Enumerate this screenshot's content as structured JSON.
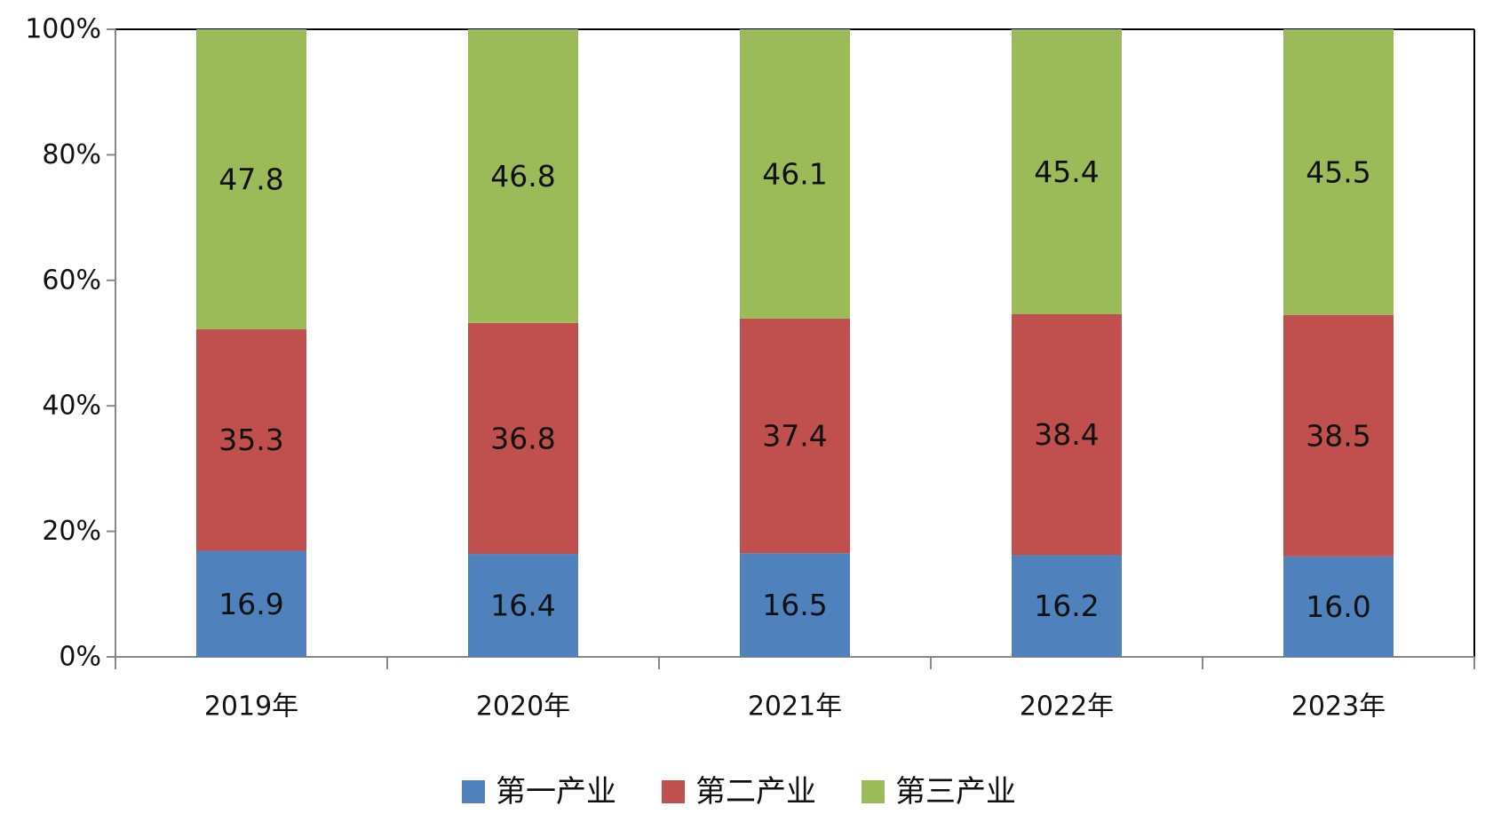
{
  "chart_data": {
    "type": "bar",
    "stacked": true,
    "percent_stacked": true,
    "categories": [
      "2019年",
      "2020年",
      "2021年",
      "2022年",
      "2023年"
    ],
    "series": [
      {
        "name": "第一产业",
        "values": [
          16.9,
          16.4,
          16.5,
          16.2,
          16.0
        ],
        "color": "#4f81bd"
      },
      {
        "name": "第二产业",
        "values": [
          35.3,
          36.8,
          37.4,
          38.4,
          38.5
        ],
        "color": "#c0504d"
      },
      {
        "name": "第三产业",
        "values": [
          47.8,
          46.8,
          46.1,
          45.4,
          45.5
        ],
        "color": "#9bbb59"
      }
    ],
    "y_ticks": [
      "0%",
      "20%",
      "40%",
      "60%",
      "80%",
      "100%"
    ],
    "ylim": [
      0,
      100
    ],
    "grid": false,
    "legend_position": "bottom"
  }
}
